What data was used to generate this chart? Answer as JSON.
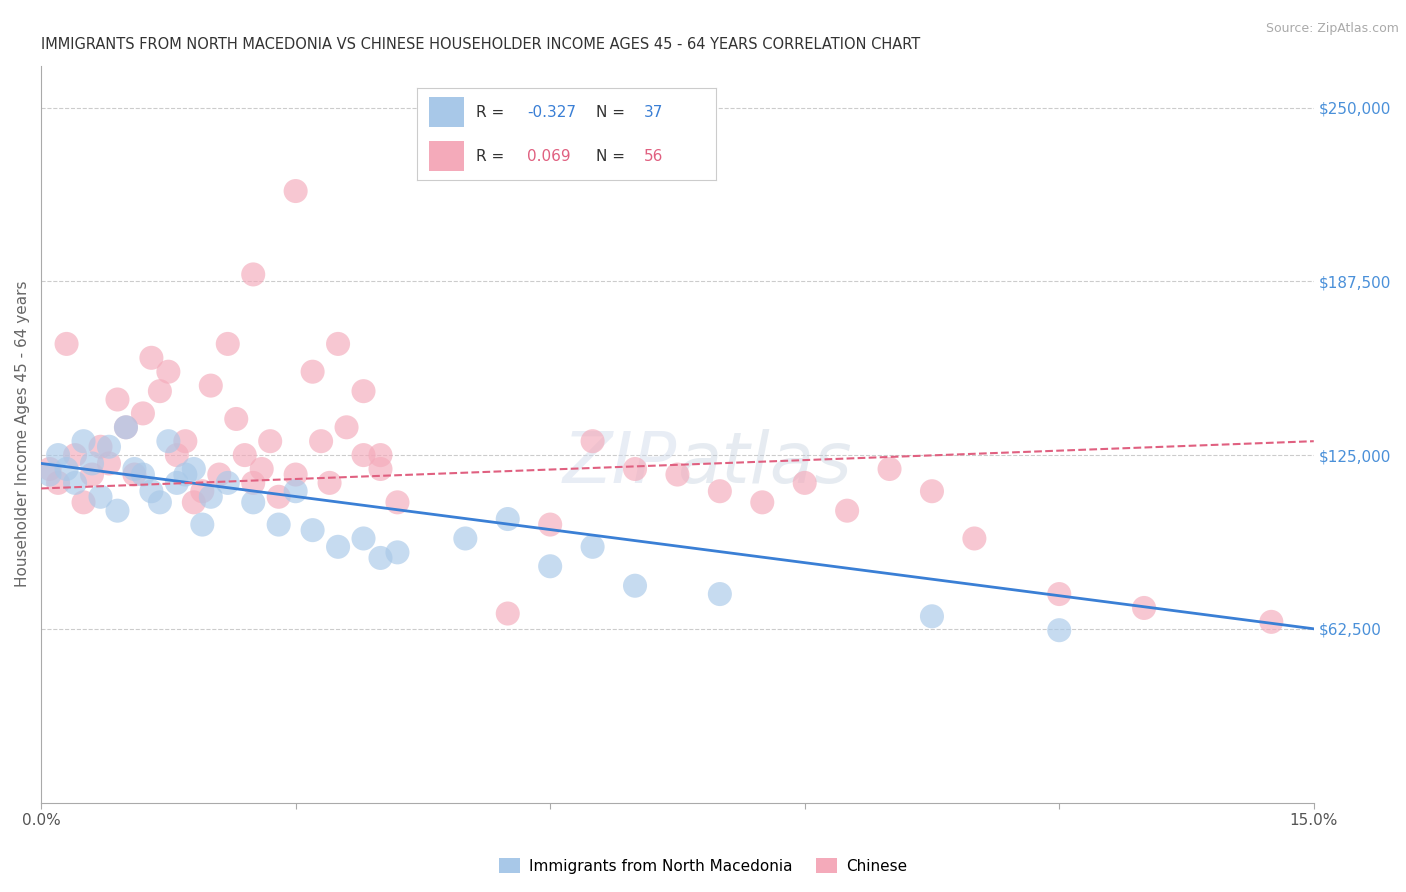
{
  "title": "IMMIGRANTS FROM NORTH MACEDONIA VS CHINESE HOUSEHOLDER INCOME AGES 45 - 64 YEARS CORRELATION CHART",
  "source": "Source: ZipAtlas.com",
  "ylabel": "Householder Income Ages 45 - 64 years",
  "xlim": [
    0,
    0.15
  ],
  "ylim": [
    0,
    265000
  ],
  "yticks_right": [
    62500,
    125000,
    187500,
    250000
  ],
  "ytick_right_labels": [
    "$62,500",
    "$125,000",
    "$187,500",
    "$250,000"
  ],
  "blue_R": "-0.327",
  "blue_N": "37",
  "pink_R": "0.069",
  "pink_N": "56",
  "blue_color": "#a8c8e8",
  "pink_color": "#f4aaba",
  "blue_line_color": "#3a7fd5",
  "pink_line_color": "#e06080",
  "legend_label_blue": "Immigrants from North Macedonia",
  "legend_label_pink": "Chinese",
  "blue_trend_x0": 0.0,
  "blue_trend_y0": 122000,
  "blue_trend_x1": 0.15,
  "blue_trend_y1": 62500,
  "pink_trend_x0": 0.0,
  "pink_trend_y0": 113000,
  "pink_trend_x1": 0.15,
  "pink_trend_y1": 130000,
  "blue_scatter_x": [
    0.001,
    0.002,
    0.003,
    0.004,
    0.005,
    0.006,
    0.007,
    0.008,
    0.009,
    0.01,
    0.011,
    0.012,
    0.013,
    0.014,
    0.015,
    0.016,
    0.017,
    0.018,
    0.019,
    0.02,
    0.022,
    0.025,
    0.028,
    0.03,
    0.032,
    0.035,
    0.038,
    0.04,
    0.042,
    0.05,
    0.055,
    0.06,
    0.065,
    0.07,
    0.08,
    0.105,
    0.12
  ],
  "blue_scatter_y": [
    118000,
    125000,
    120000,
    115000,
    130000,
    122000,
    110000,
    128000,
    105000,
    135000,
    120000,
    118000,
    112000,
    108000,
    130000,
    115000,
    118000,
    120000,
    100000,
    110000,
    115000,
    108000,
    100000,
    112000,
    98000,
    92000,
    95000,
    88000,
    90000,
    95000,
    102000,
    85000,
    92000,
    78000,
    75000,
    67000,
    62000
  ],
  "pink_scatter_x": [
    0.001,
    0.002,
    0.003,
    0.004,
    0.005,
    0.006,
    0.007,
    0.008,
    0.009,
    0.01,
    0.011,
    0.012,
    0.013,
    0.014,
    0.015,
    0.016,
    0.017,
    0.018,
    0.019,
    0.02,
    0.021,
    0.022,
    0.023,
    0.024,
    0.025,
    0.026,
    0.027,
    0.028,
    0.03,
    0.032,
    0.033,
    0.034,
    0.036,
    0.038,
    0.04,
    0.042,
    0.025,
    0.03,
    0.035,
    0.038,
    0.04,
    0.055,
    0.06,
    0.065,
    0.07,
    0.075,
    0.08,
    0.085,
    0.09,
    0.095,
    0.1,
    0.105,
    0.11,
    0.12,
    0.13,
    0.145
  ],
  "pink_scatter_y": [
    120000,
    115000,
    165000,
    125000,
    108000,
    118000,
    128000,
    122000,
    145000,
    135000,
    118000,
    140000,
    160000,
    148000,
    155000,
    125000,
    130000,
    108000,
    112000,
    150000,
    118000,
    165000,
    138000,
    125000,
    115000,
    120000,
    130000,
    110000,
    118000,
    155000,
    130000,
    115000,
    135000,
    125000,
    120000,
    108000,
    190000,
    220000,
    165000,
    148000,
    125000,
    68000,
    100000,
    130000,
    120000,
    118000,
    112000,
    108000,
    115000,
    105000,
    120000,
    112000,
    95000,
    75000,
    70000,
    65000
  ]
}
